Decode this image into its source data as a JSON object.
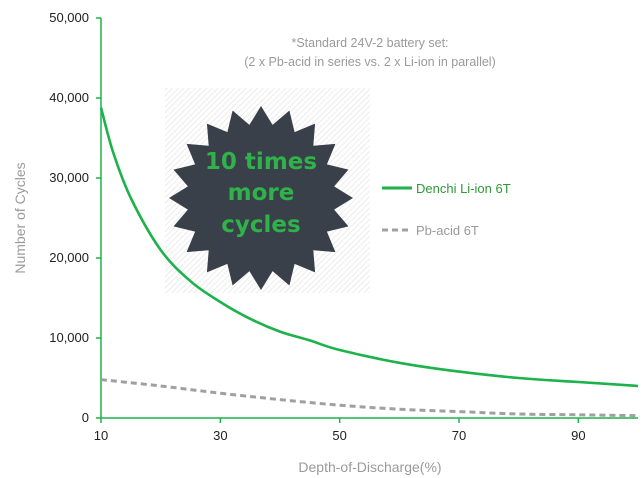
{
  "chart_data": {
    "type": "line",
    "title": "",
    "xlabel": "Depth-of-Discharge(%)",
    "ylabel": "Number of Cycles",
    "xlim": [
      10,
      100
    ],
    "ylim": [
      0,
      50000
    ],
    "x_ticks": [
      "10",
      "30",
      "50",
      "70",
      "90"
    ],
    "x_tick_values": [
      10,
      30,
      50,
      70,
      90
    ],
    "y_ticks": [
      "0",
      "10,000",
      "20,000",
      "30,000",
      "40,000",
      "50,000"
    ],
    "y_tick_values": [
      0,
      10000,
      20000,
      30000,
      40000,
      50000
    ],
    "series": [
      {
        "name": "Denchi Li-ion 6T",
        "color": "#1db24a",
        "style": "solid",
        "x": [
          10,
          12,
          15,
          20,
          25,
          30,
          35,
          40,
          45,
          50,
          60,
          70,
          80,
          90,
          100
        ],
        "values": [
          38800,
          33300,
          27500,
          21000,
          17100,
          14500,
          12400,
          10800,
          9700,
          8500,
          6900,
          5800,
          5000,
          4500,
          4000
        ]
      },
      {
        "name": "Pb-acid 6T",
        "color": "#a0a0a0",
        "style": "dashed",
        "x": [
          10,
          20,
          30,
          40,
          50,
          60,
          70,
          80,
          90,
          100
        ],
        "values": [
          4800,
          4000,
          3100,
          2300,
          1600,
          1100,
          800,
          500,
          400,
          300
        ]
      }
    ],
    "legend_position": "right",
    "grid": false
  },
  "annotations": {
    "note_line1": "*Standard  24V-2 battery set:",
    "note_line2": "(2 x Pb-acid in series vs. 2 x Li-ion in parallel)",
    "badge_line1": "10 times",
    "badge_line2": "more",
    "badge_line3": "cycles",
    "badge_color": "#3a4049"
  }
}
